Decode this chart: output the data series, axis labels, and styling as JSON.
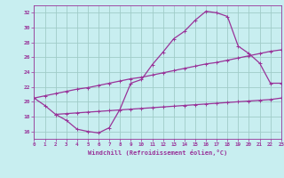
{
  "xlabel": "Windchill (Refroidissement éolien,°C)",
  "bg_color": "#c8eef0",
  "grid_color": "#a0ccc8",
  "line_color": "#993399",
  "xmin": 0,
  "xmax": 23,
  "ymin": 15.0,
  "ymax": 33.0,
  "yticks": [
    16,
    18,
    20,
    22,
    24,
    26,
    28,
    30,
    32
  ],
  "xticks": [
    0,
    1,
    2,
    3,
    4,
    5,
    6,
    7,
    8,
    9,
    10,
    11,
    12,
    13,
    14,
    15,
    16,
    17,
    18,
    19,
    20,
    21,
    22,
    23
  ],
  "curve1_x": [
    0,
    1,
    2,
    3,
    4,
    5,
    6,
    7,
    8,
    9,
    10,
    11,
    12,
    13,
    14,
    15,
    16,
    17,
    18,
    19,
    20,
    21,
    22,
    23
  ],
  "curve1_y": [
    20.5,
    19.5,
    18.3,
    17.5,
    16.3,
    16.0,
    15.8,
    16.5,
    19.0,
    22.5,
    23.0,
    25.0,
    26.7,
    28.5,
    29.5,
    31.0,
    32.2,
    32.0,
    31.5,
    27.5,
    26.5,
    25.2,
    22.5,
    22.5
  ],
  "curve2_x": [
    0,
    1,
    2,
    3,
    4,
    5,
    6,
    7,
    8,
    9,
    10,
    11,
    12,
    13,
    14,
    15,
    16,
    17,
    18,
    19,
    20,
    21,
    22,
    23
  ],
  "curve2_y": [
    20.5,
    20.8,
    21.1,
    21.4,
    21.7,
    21.9,
    22.2,
    22.5,
    22.8,
    23.1,
    23.3,
    23.6,
    23.9,
    24.2,
    24.5,
    24.8,
    25.1,
    25.3,
    25.6,
    25.9,
    26.2,
    26.5,
    26.8,
    27.0
  ],
  "curve3_x": [
    2,
    3,
    4,
    5,
    6,
    7,
    8,
    9,
    10,
    11,
    12,
    13,
    14,
    15,
    16,
    17,
    18,
    19,
    20,
    21,
    22,
    23
  ],
  "curve3_y": [
    18.3,
    18.4,
    18.5,
    18.6,
    18.7,
    18.8,
    18.9,
    19.0,
    19.1,
    19.2,
    19.3,
    19.4,
    19.5,
    19.6,
    19.7,
    19.8,
    19.9,
    20.0,
    20.1,
    20.2,
    20.3,
    20.5
  ]
}
